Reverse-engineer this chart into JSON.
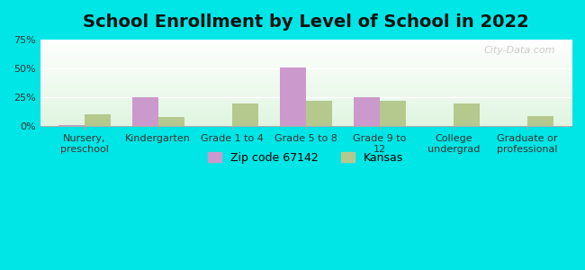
{
  "title": "School Enrollment by Level of School in 2022",
  "categories": [
    "Nursery,\npreschool",
    "Kindergarten",
    "Grade 1 to 4",
    "Grade 5 to 8",
    "Grade 9 to\n12",
    "College\nundergrad",
    "Graduate or\nprofessional"
  ],
  "zip_values": [
    1.0,
    25.0,
    0.0,
    51.0,
    25.0,
    0.0,
    0.0
  ],
  "kansas_values": [
    10.0,
    8.0,
    20.0,
    22.0,
    22.0,
    20.0,
    9.0
  ],
  "zip_color": "#cc99cc",
  "kansas_color": "#b5c98e",
  "background_outer": "#00e5e5",
  "ylim": [
    0,
    75
  ],
  "yticks": [
    0,
    25,
    50,
    75
  ],
  "ytick_labels": [
    "0%",
    "25%",
    "50%",
    "75%"
  ],
  "zip_label": "Zip code 67142",
  "kansas_label": "Kansas",
  "watermark": "City-Data.com",
  "bar_width": 0.35,
  "title_fontsize": 14,
  "tick_fontsize": 8,
  "legend_fontsize": 9
}
